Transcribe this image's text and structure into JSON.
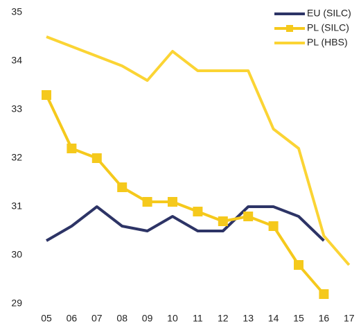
{
  "chart_data": {
    "type": "line",
    "categories": [
      "05",
      "06",
      "07",
      "08",
      "09",
      "10",
      "11",
      "12",
      "13",
      "14",
      "15",
      "16",
      "17"
    ],
    "series": [
      {
        "name": "EU (SILC)",
        "color": "#2d3466",
        "marker": "none",
        "values": [
          30.3,
          30.6,
          31.0,
          30.6,
          30.5,
          30.8,
          30.5,
          30.5,
          31.0,
          31.0,
          30.8,
          30.3,
          null
        ]
      },
      {
        "name": "PL (SILC)",
        "color": "#f5c91c",
        "marker": "square",
        "values": [
          33.3,
          32.2,
          32.0,
          31.4,
          31.1,
          31.1,
          30.9,
          30.7,
          30.8,
          30.6,
          29.8,
          29.2,
          null
        ]
      },
      {
        "name": "PL (HBS)",
        "color": "#fbd434",
        "marker": "none",
        "values": [
          34.5,
          34.3,
          34.1,
          33.9,
          33.6,
          34.2,
          33.8,
          33.8,
          33.8,
          32.6,
          32.2,
          30.4,
          29.8
        ]
      }
    ],
    "ylim": [
      29,
      35
    ],
    "yticks": [
      29,
      30,
      31,
      32,
      33,
      34,
      35
    ],
    "grid": false,
    "legend": "top-right"
  }
}
